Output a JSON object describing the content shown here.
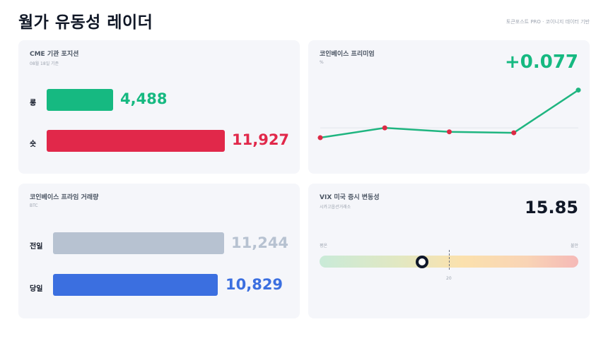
{
  "header": {
    "title": "월가 유동성 레이더",
    "source": "토큰포스트 PRO · 코이니지 데이터 기반"
  },
  "cme": {
    "title": "CME 기관 포지션",
    "subtitle": "08월 18일 기준",
    "long_label": "롱",
    "long_value": "4,488",
    "long_num": 4488,
    "short_label": "숏",
    "short_value": "11,927",
    "short_num": 11927,
    "long_color": "#16b981",
    "short_color": "#e1284a"
  },
  "premium": {
    "title": "코인베이스 프리미엄",
    "unit": "%",
    "value": "+0.077",
    "color": "#16b981",
    "chart_data": {
      "type": "line",
      "series": [
        {
          "values": [
            -0.02,
            0.0,
            -0.008,
            -0.01,
            0.077
          ]
        }
      ],
      "ylim": [
        -0.03,
        0.085
      ],
      "baseline": 0,
      "line_color": "#1fb580",
      "point_color": "#dc2a45"
    }
  },
  "volume": {
    "title": "코인베이스 프라임 거래량",
    "subtitle": "BTC",
    "prev_label": "전일",
    "prev_value": "11,244",
    "prev_num": 11244,
    "today_label": "당일",
    "today_value": "10,829",
    "today_num": 10829,
    "prev_color": "#b7c2d1",
    "today_color": "#3b6fe0"
  },
  "vix": {
    "title": "VIX 미국 증시 변동성",
    "subtitle": "시카고옵션거래소",
    "value": "15.85",
    "calm_label": "평온",
    "fear_label": "불안",
    "threshold_label": "20",
    "level": 15.85
  }
}
